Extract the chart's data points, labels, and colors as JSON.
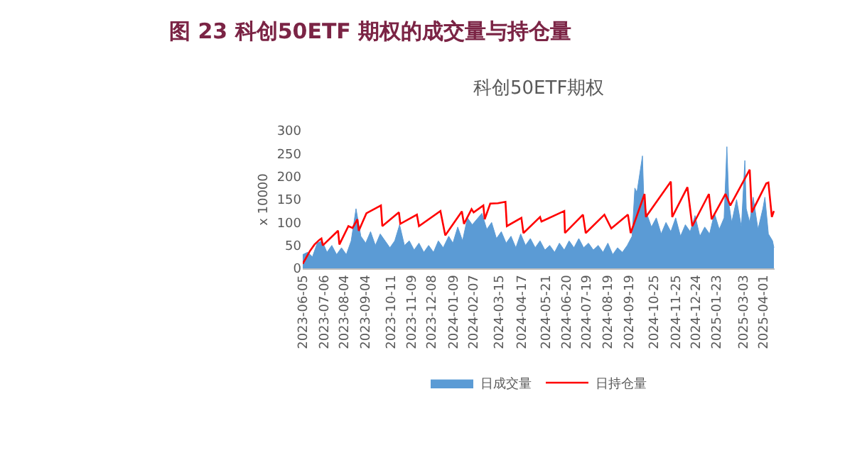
{
  "chart_data": {
    "type": "line",
    "title": "图 23 科创50ETF 期权的成交量与持仓量",
    "subtitle": "科创50ETF期权",
    "ylabel": "x 10000",
    "ylim": [
      0,
      300
    ],
    "yticks": [
      0,
      50,
      100,
      150,
      200,
      250,
      300
    ],
    "xlim": [
      "2023-06-05",
      "2025-04-17"
    ],
    "xticks": [
      "2023-06-05",
      "2023-07-06",
      "2023-08-04",
      "2023-09-04",
      "2023-10-11",
      "2023-11-09",
      "2023-12-08",
      "2024-01-09",
      "2024-02-07",
      "2024-03-15",
      "2024-04-17",
      "2024-05-21",
      "2024-06-20",
      "2024-07-19",
      "2024-08-19",
      "2024-09-19",
      "2024-10-25",
      "2024-11-25",
      "2024-12-24",
      "2025-01-23",
      "2025-03-03",
      "2025-04-01"
    ],
    "grid": false,
    "legend": "bottom",
    "series": [
      {
        "name": "日成交量",
        "type": "area",
        "color": "#5b9bd5",
        "x": [
          "2023-06-05",
          "2023-06-12",
          "2023-06-19",
          "2023-06-26",
          "2023-07-03",
          "2023-07-10",
          "2023-07-17",
          "2023-07-24",
          "2023-07-31",
          "2023-08-07",
          "2023-08-14",
          "2023-08-21",
          "2023-08-28",
          "2023-09-04",
          "2023-09-11",
          "2023-09-18",
          "2023-09-25",
          "2023-10-09",
          "2023-10-16",
          "2023-10-23",
          "2023-10-30",
          "2023-11-06",
          "2023-11-13",
          "2023-11-20",
          "2023-11-27",
          "2023-12-04",
          "2023-12-11",
          "2023-12-18",
          "2023-12-25",
          "2024-01-02",
          "2024-01-08",
          "2024-01-15",
          "2024-01-22",
          "2024-01-29",
          "2024-02-05",
          "2024-02-19",
          "2024-02-26",
          "2024-03-04",
          "2024-03-11",
          "2024-03-18",
          "2024-03-25",
          "2024-04-01",
          "2024-04-08",
          "2024-04-15",
          "2024-04-22",
          "2024-04-29",
          "2024-05-06",
          "2024-05-13",
          "2024-05-20",
          "2024-05-27",
          "2024-06-03",
          "2024-06-10",
          "2024-06-17",
          "2024-06-24",
          "2024-07-01",
          "2024-07-08",
          "2024-07-15",
          "2024-07-22",
          "2024-07-29",
          "2024-08-05",
          "2024-08-12",
          "2024-08-19",
          "2024-08-26",
          "2024-09-02",
          "2024-09-09",
          "2024-09-16",
          "2024-09-23",
          "2024-09-27",
          "2024-09-30",
          "2024-10-08",
          "2024-10-10",
          "2024-10-14",
          "2024-10-21",
          "2024-10-28",
          "2024-11-04",
          "2024-11-11",
          "2024-11-18",
          "2024-11-25",
          "2024-12-02",
          "2024-12-09",
          "2024-12-16",
          "2024-12-23",
          "2024-12-30",
          "2025-01-06",
          "2025-01-13",
          "2025-01-20",
          "2025-01-27",
          "2025-02-03",
          "2025-02-07",
          "2025-02-10",
          "2025-02-14",
          "2025-02-21",
          "2025-02-28",
          "2025-03-05",
          "2025-03-07",
          "2025-03-12",
          "2025-03-17",
          "2025-03-24",
          "2025-03-31",
          "2025-04-03",
          "2025-04-08",
          "2025-04-14",
          "2025-04-16"
        ],
        "values": [
          30,
          35,
          25,
          55,
          60,
          35,
          50,
          30,
          45,
          30,
          60,
          130,
          70,
          55,
          80,
          50,
          75,
          45,
          60,
          95,
          50,
          60,
          40,
          55,
          35,
          50,
          35,
          60,
          45,
          70,
          55,
          90,
          60,
          110,
          95,
          120,
          85,
          100,
          65,
          80,
          55,
          70,
          45,
          75,
          50,
          65,
          45,
          60,
          40,
          50,
          35,
          55,
          40,
          60,
          45,
          65,
          45,
          55,
          40,
          50,
          35,
          55,
          30,
          45,
          35,
          50,
          70,
          175,
          165,
          245,
          150,
          120,
          90,
          110,
          75,
          100,
          80,
          110,
          70,
          95,
          80,
          115,
          70,
          90,
          75,
          120,
          85,
          110,
          265,
          140,
          100,
          150,
          90,
          235,
          130,
          100,
          155,
          85,
          130,
          155,
          75,
          60,
          45
        ]
      },
      {
        "name": "日持仓量",
        "color": "#ff0000",
        "line_style": "solid",
        "marker": "none",
        "x": [
          "2023-06-05",
          "2023-06-15",
          "2023-06-22",
          "2023-06-29",
          "2023-07-02",
          "2023-07-04",
          "2023-07-26",
          "2023-07-28",
          "2023-08-10",
          "2023-08-16",
          "2023-08-23",
          "2023-08-25",
          "2023-09-05",
          "2023-09-26",
          "2023-09-28",
          "2023-10-22",
          "2023-10-24",
          "2023-11-17",
          "2023-11-20",
          "2023-12-21",
          "2023-12-28",
          "2024-01-21",
          "2024-01-24",
          "2024-02-04",
          "2024-02-07",
          "2024-02-21",
          "2024-02-23",
          "2024-03-02",
          "2024-03-13",
          "2024-03-24",
          "2024-03-26",
          "2024-04-16",
          "2024-04-19",
          "2024-05-13",
          "2024-05-15",
          "2024-06-17",
          "2024-06-18",
          "2024-07-14",
          "2024-07-18",
          "2024-08-14",
          "2024-08-24",
          "2024-09-17",
          "2024-09-21",
          "2024-10-11",
          "2024-10-13",
          "2024-11-18",
          "2024-11-20",
          "2024-12-12",
          "2024-12-19",
          "2025-01-12",
          "2025-01-16",
          "2025-02-05",
          "2025-02-12",
          "2025-03-12",
          "2025-03-15",
          "2025-04-05",
          "2025-04-08",
          "2025-04-13",
          "2025-04-16"
        ],
        "values": [
          10,
          37,
          52,
          62,
          65,
          50,
          82,
          52,
          92,
          88,
          107,
          82,
          120,
          137,
          92,
          122,
          97,
          117,
          92,
          125,
          72,
          124,
          97,
          129,
          122,
          137,
          107,
          141,
          142,
          145,
          92,
          110,
          77,
          112,
          102,
          125,
          77,
          117,
          77,
          117,
          87,
          117,
          77,
          162,
          112,
          189,
          112,
          177,
          92,
          162,
          107,
          162,
          137,
          215,
          122,
          185,
          187,
          112,
          125
        ]
      }
    ]
  }
}
